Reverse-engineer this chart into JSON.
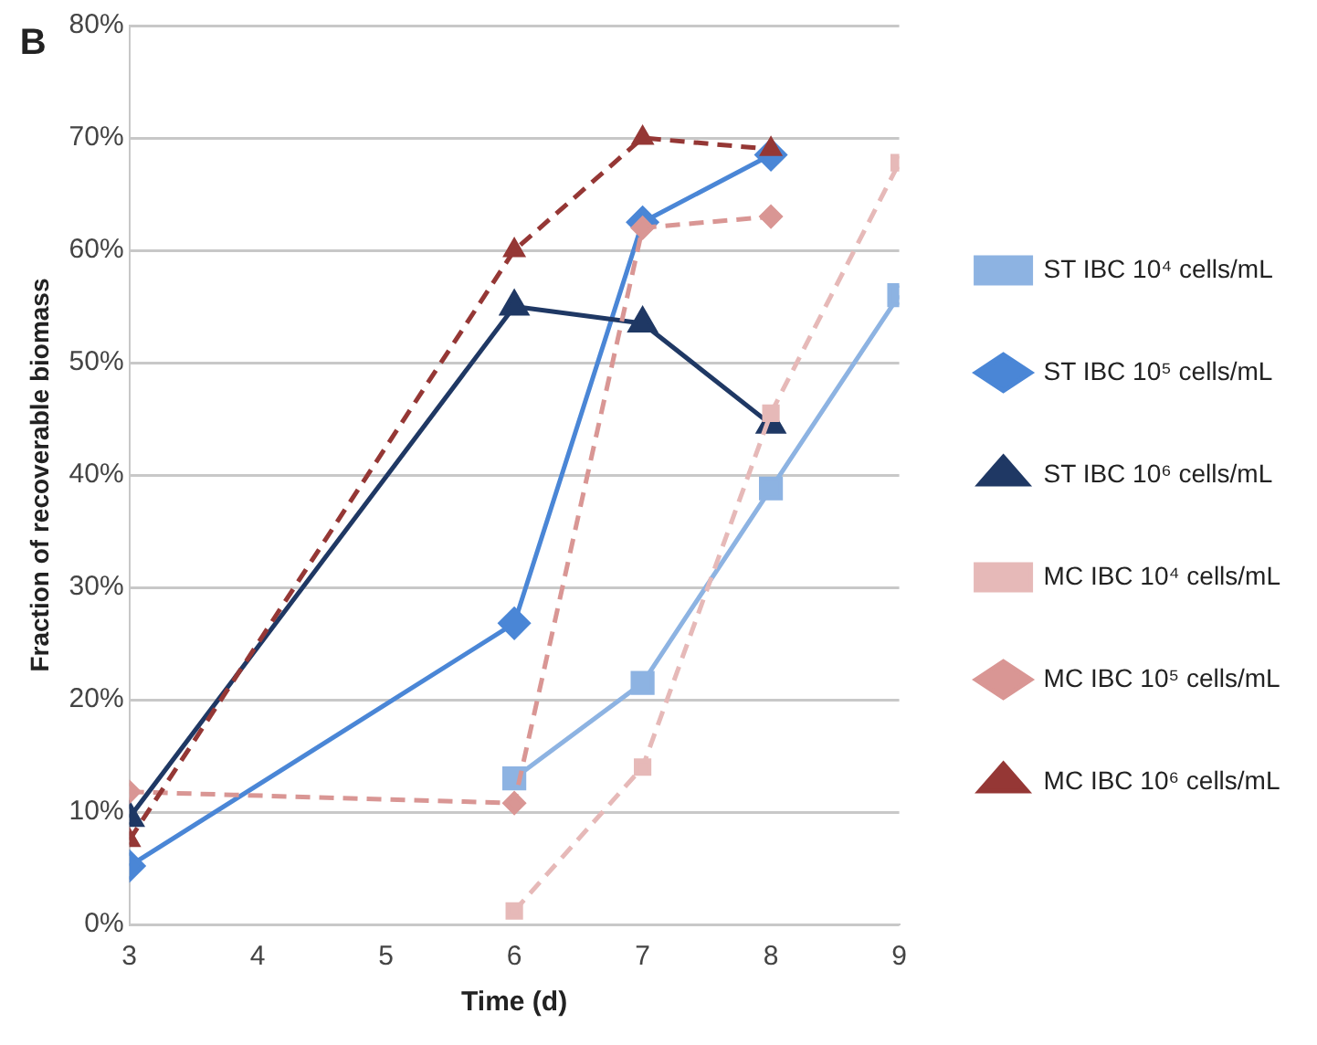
{
  "chart_data": {
    "type": "line",
    "xlabel": "Time (d)",
    "ylabel": "Fraction of recoverable biomass",
    "annotations": [
      "B"
    ],
    "xlim": [
      3,
      9
    ],
    "xticks": [
      3,
      4,
      5,
      6,
      7,
      8,
      9
    ],
    "ylim": [
      0,
      80
    ],
    "yticks": [
      {
        "value": 0,
        "label": "0%"
      },
      {
        "value": 10,
        "label": "10%"
      },
      {
        "value": 20,
        "label": "20%"
      },
      {
        "value": 30,
        "label": "30%"
      },
      {
        "value": 40,
        "label": "40%"
      },
      {
        "value": 50,
        "label": "50%"
      },
      {
        "value": 60,
        "label": "60%"
      },
      {
        "value": 70,
        "label": "70%"
      },
      {
        "value": 80,
        "label": "80%"
      }
    ],
    "grid": "y",
    "legend": "right",
    "series": [
      {
        "name": "ST IBC 10⁴ cells/mL",
        "color": "#8db3e2",
        "x": [
          6,
          7,
          8,
          9
        ],
        "values": [
          13,
          21.5,
          38.8,
          56
        ],
        "marker": "square",
        "line_style": "solid"
      },
      {
        "name": "ST IBC 10⁵ cells/mL",
        "color": "#4a86d6",
        "x": [
          3,
          6,
          7,
          8
        ],
        "values": [
          5.2,
          26.8,
          62.5,
          68.5
        ],
        "marker": "diamond",
        "line_style": "solid"
      },
      {
        "name": "ST IBC 10⁶ cells/mL",
        "color": "#1f3864",
        "x": [
          3,
          6,
          7,
          8
        ],
        "values": [
          9.5,
          55,
          53.5,
          44.5
        ],
        "marker": "triangle",
        "line_style": "solid"
      },
      {
        "name": "MC IBC 10⁴ cells/mL",
        "color": "#e6b9b8",
        "x": [
          6,
          7,
          8,
          9
        ],
        "values": [
          1.2,
          14,
          45.5,
          67.8
        ],
        "marker": "square",
        "line_style": "dashed"
      },
      {
        "name": "MC IBC 10⁵ cells/mL",
        "color": "#d99694",
        "x": [
          3,
          6,
          7,
          8
        ],
        "values": [
          11.8,
          10.8,
          62,
          63
        ],
        "marker": "diamond",
        "line_style": "dashed"
      },
      {
        "name": "MC IBC 10⁶ cells/mL",
        "color": "#953735",
        "x": [
          3,
          6,
          7,
          8
        ],
        "values": [
          7.5,
          60,
          70,
          69
        ],
        "marker": "triangle",
        "line_style": "dashed"
      }
    ]
  }
}
